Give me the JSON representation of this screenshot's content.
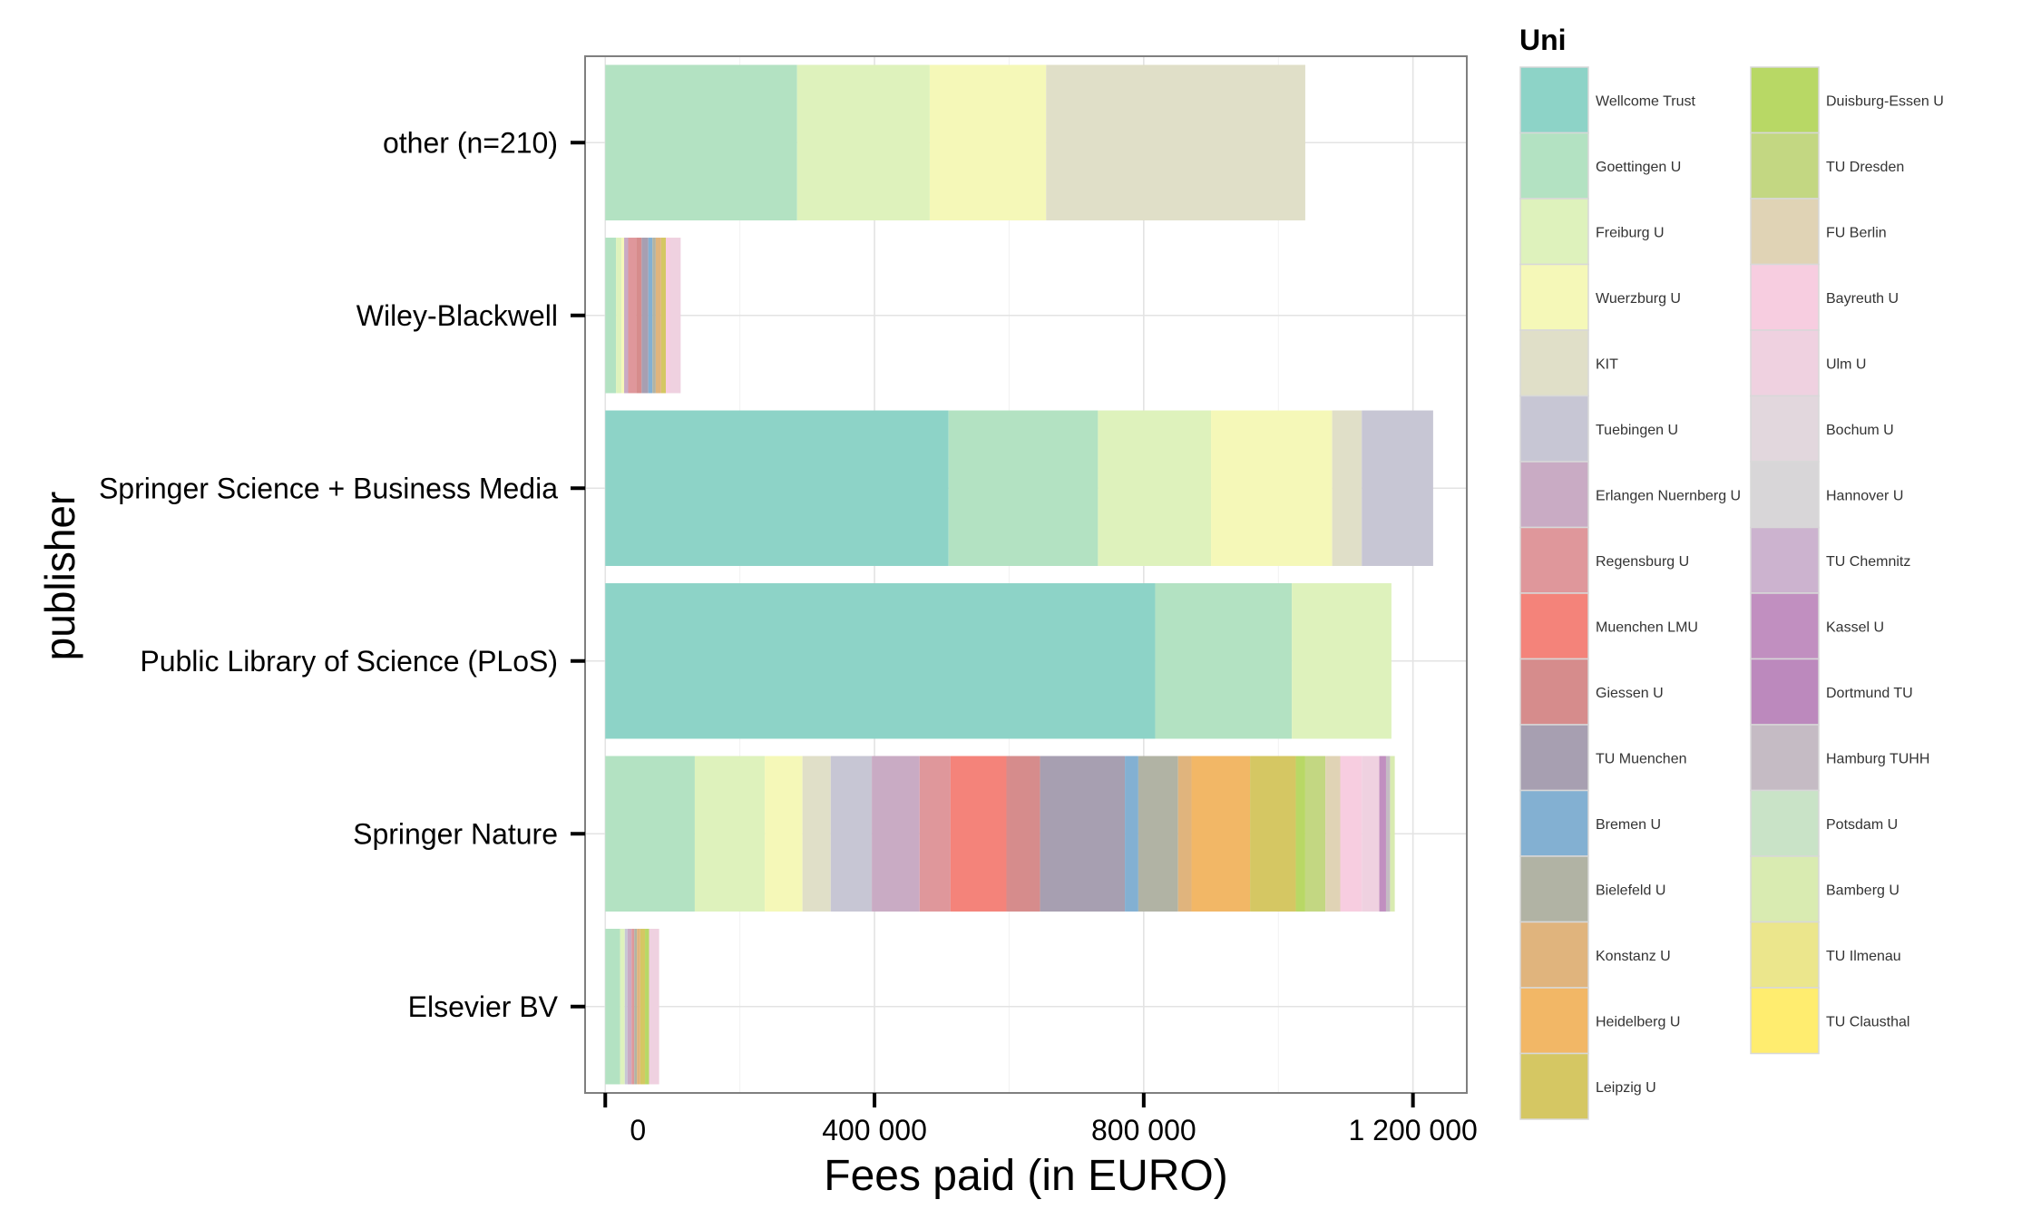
{
  "chart_data": {
    "type": "bar",
    "orientation": "horizontal",
    "stacked": true,
    "title": "",
    "xlabel": "Fees paid (in EURO)",
    "ylabel": "publisher",
    "xlim": [
      -30000,
      1280000
    ],
    "xticks": [
      0,
      400000,
      800000,
      1200000
    ],
    "xtick_labels": [
      "0",
      "400 000",
      "800 000",
      "1 200 000"
    ],
    "grid": true,
    "legend_placement": "right",
    "legend_title": "Uni",
    "categories": [
      "other (n=210)",
      "Wiley-Blackwell",
      "Springer Science + Business Media",
      "Public Library of Science (PLoS)",
      "Springer Nature",
      "Elsevier BV"
    ],
    "unis": [
      {
        "name": "Wellcome Trust",
        "color": "#8dd3c7"
      },
      {
        "name": "Goettingen U",
        "color": "#b3e2c2"
      },
      {
        "name": "Freiburg U",
        "color": "#def2bc"
      },
      {
        "name": "Wuerzburg U",
        "color": "#f5f8b8"
      },
      {
        "name": "KIT",
        "color": "#e0dfc8"
      },
      {
        "name": "Tuebingen U",
        "color": "#c7c6d4"
      },
      {
        "name": "Erlangen Nuernberg U",
        "color": "#c9abc4"
      },
      {
        "name": "Regensburg U",
        "color": "#df979b"
      },
      {
        "name": "Muenchen LMU",
        "color": "#f4837a"
      },
      {
        "name": "Giessen U",
        "color": "#d68c8c"
      },
      {
        "name": "TU Muenchen",
        "color": "#a79fb1"
      },
      {
        "name": "Bremen U",
        "color": "#83b0d2"
      },
      {
        "name": "Bielefeld U",
        "color": "#b1b3a4"
      },
      {
        "name": "Konstanz U",
        "color": "#e0b47d"
      },
      {
        "name": "Heidelberg U",
        "color": "#f2b766"
      },
      {
        "name": "Leipzig U",
        "color": "#d5c763"
      },
      {
        "name": "Duisburg-Essen U",
        "color": "#b8d865"
      },
      {
        "name": "TU Dresden",
        "color": "#c3d782"
      },
      {
        "name": "FU Berlin",
        "color": "#e0d3b5"
      },
      {
        "name": "Bayreuth U",
        "color": "#f7cde0"
      },
      {
        "name": "Ulm U",
        "color": "#efd1e0"
      },
      {
        "name": "Bochum U",
        "color": "#e2d7dd"
      },
      {
        "name": "Hannover U",
        "color": "#d8d6d8"
      },
      {
        "name": "TU Chemnitz",
        "color": "#ccb3cf"
      },
      {
        "name": "Kassel U",
        "color": "#c18fc0"
      },
      {
        "name": "Dortmund TU",
        "color": "#bc89bd"
      },
      {
        "name": "Hamburg TUHH",
        "color": "#c5bbc4"
      },
      {
        "name": "Potsdam U",
        "color": "#c9e3c7"
      },
      {
        "name": "Bamberg U",
        "color": "#d9ebb1"
      },
      {
        "name": "TU Ilmenau",
        "color": "#ebe68c"
      },
      {
        "name": "TU Clausthal",
        "color": "#ffed6f"
      }
    ],
    "series": [
      {
        "category": "other (n=210)",
        "segments": [
          {
            "uni": "Goettingen U",
            "value": 285000
          },
          {
            "uni": "Freiburg U",
            "value": 197000
          },
          {
            "uni": "Wuerzburg U",
            "value": 173000
          },
          {
            "uni": "KIT",
            "value": 385000
          }
        ]
      },
      {
        "category": "Wiley-Blackwell",
        "segments": [
          {
            "uni": "Goettingen U",
            "value": 16000
          },
          {
            "uni": "Freiburg U",
            "value": 8000
          },
          {
            "uni": "Wuerzburg U",
            "value": 4000
          },
          {
            "uni": "Erlangen Nuernberg U",
            "value": 6000
          },
          {
            "uni": "Regensburg U",
            "value": 12000
          },
          {
            "uni": "Giessen U",
            "value": 8000
          },
          {
            "uni": "TU Muenchen",
            "value": 10000
          },
          {
            "uni": "Bremen U",
            "value": 6000
          },
          {
            "uni": "Bielefeld U",
            "value": 5000
          },
          {
            "uni": "Konstanz U",
            "value": 8000
          },
          {
            "uni": "Leipzig U",
            "value": 7000
          },
          {
            "uni": "Bayreuth U",
            "value": 6000
          },
          {
            "uni": "Ulm U",
            "value": 16000
          }
        ]
      },
      {
        "category": "Springer Science + Business Media",
        "segments": [
          {
            "uni": "Wellcome Trust",
            "value": 510000
          },
          {
            "uni": "Goettingen U",
            "value": 222000
          },
          {
            "uni": "Freiburg U",
            "value": 168000
          },
          {
            "uni": "Wuerzburg U",
            "value": 180000
          },
          {
            "uni": "KIT",
            "value": 44000
          },
          {
            "uni": "Tuebingen U",
            "value": 106000
          }
        ]
      },
      {
        "category": "Public Library of Science (PLoS)",
        "segments": [
          {
            "uni": "Wellcome Trust",
            "value": 817000
          },
          {
            "uni": "Goettingen U",
            "value": 203000
          },
          {
            "uni": "Freiburg U",
            "value": 148000
          }
        ]
      },
      {
        "category": "Springer Nature",
        "segments": [
          {
            "uni": "Goettingen U",
            "value": 133000
          },
          {
            "uni": "Freiburg U",
            "value": 104000
          },
          {
            "uni": "Wuerzburg U",
            "value": 56000
          },
          {
            "uni": "KIT",
            "value": 42000
          },
          {
            "uni": "Tuebingen U",
            "value": 61000
          },
          {
            "uni": "Erlangen Nuernberg U",
            "value": 71000
          },
          {
            "uni": "Regensburg U",
            "value": 46000
          },
          {
            "uni": "Muenchen LMU",
            "value": 83000
          },
          {
            "uni": "Giessen U",
            "value": 50000
          },
          {
            "uni": "TU Muenchen",
            "value": 126000
          },
          {
            "uni": "Bremen U",
            "value": 20000
          },
          {
            "uni": "Bielefeld U",
            "value": 59000
          },
          {
            "uni": "Konstanz U",
            "value": 20000
          },
          {
            "uni": "Heidelberg U",
            "value": 87000
          },
          {
            "uni": "Leipzig U",
            "value": 68000
          },
          {
            "uni": "Duisburg-Essen U",
            "value": 14000
          },
          {
            "uni": "TU Dresden",
            "value": 30000
          },
          {
            "uni": "FU Berlin",
            "value": 22000
          },
          {
            "uni": "Bayreuth U",
            "value": 32000
          },
          {
            "uni": "Ulm U",
            "value": 26000
          },
          {
            "uni": "Kassel U",
            "value": 10000
          },
          {
            "uni": "Hamburg TUHH",
            "value": 6000
          },
          {
            "uni": "Bamberg U",
            "value": 7000
          }
        ]
      },
      {
        "category": "Elsevier BV",
        "segments": [
          {
            "uni": "Goettingen U",
            "value": 22000
          },
          {
            "uni": "Freiburg U",
            "value": 7000
          },
          {
            "uni": "Tuebingen U",
            "value": 4000
          },
          {
            "uni": "Erlangen Nuernberg U",
            "value": 6000
          },
          {
            "uni": "Regensburg U",
            "value": 4000
          },
          {
            "uni": "Bielefeld U",
            "value": 4000
          },
          {
            "uni": "Konstanz U",
            "value": 5000
          },
          {
            "uni": "Leipzig U",
            "value": 7000
          },
          {
            "uni": "Duisburg-Essen U",
            "value": 6000
          },
          {
            "uni": "Ulm U",
            "value": 15000
          }
        ]
      }
    ]
  }
}
